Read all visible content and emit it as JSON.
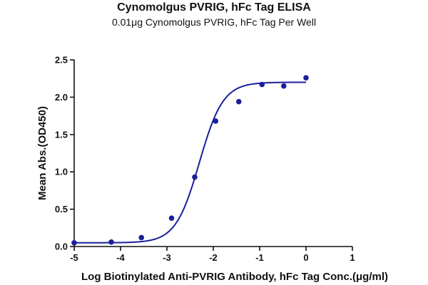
{
  "chart_data": {
    "type": "scatter",
    "title": "Cynomolgus PVRIG, hFc Tag ELISA",
    "subtitle": "0.01μg Cynomolgus PVRIG, hFc Tag Per Well",
    "xlabel": "Log Biotinylated Anti-PVRIG Antibody, hFc Tag Conc.(μg/ml)",
    "ylabel": "Mean Abs.(OD450)",
    "xlim": [
      -5,
      1
    ],
    "ylim": [
      0,
      2.5
    ],
    "x_ticks": [
      "-5",
      "-4",
      "-3",
      "-2",
      "-1",
      "0",
      "1"
    ],
    "y_ticks": [
      "0.0",
      "0.5",
      "1.0",
      "1.5",
      "2.0",
      "2.5"
    ],
    "grid": false,
    "color": "#1a1f9c",
    "series": [
      {
        "points": [
          {
            "x": -5.0,
            "y": 0.05
          },
          {
            "x": -4.2,
            "y": 0.06
          },
          {
            "x": -3.55,
            "y": 0.12
          },
          {
            "x": -2.9,
            "y": 0.38
          },
          {
            "x": -2.4,
            "y": 0.93
          },
          {
            "x": -1.95,
            "y": 1.68
          },
          {
            "x": -1.45,
            "y": 1.94
          },
          {
            "x": -0.95,
            "y": 2.17
          },
          {
            "x": -0.48,
            "y": 2.15
          },
          {
            "x": 0.0,
            "y": 2.26
          }
        ],
        "fit": {
          "model": "4PL",
          "bottom": 0.05,
          "top": 2.2,
          "log_ec50": -2.3,
          "hill": 1.7
        }
      }
    ]
  }
}
